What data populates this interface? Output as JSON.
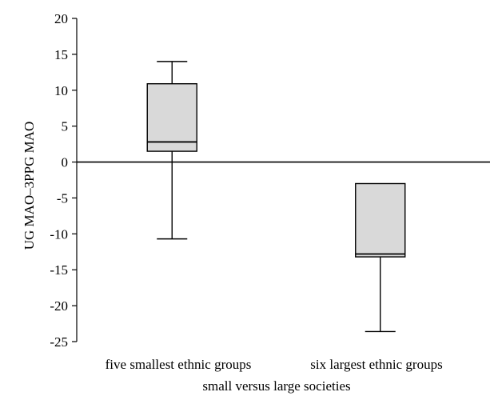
{
  "chart_data": {
    "type": "box",
    "title": "",
    "xlabel": "small versus large societies",
    "ylabel": "UG MAO–3PPG MAO",
    "ylim": [
      -25,
      20
    ],
    "yticks": [
      20,
      15,
      10,
      5,
      0,
      -5,
      -10,
      -15,
      -20,
      -25
    ],
    "ytick_labels": [
      "20",
      "15",
      "10",
      "5",
      "0",
      "-5",
      "-10",
      "-15",
      "-20",
      "-25"
    ],
    "reference_line": 0,
    "categories": [
      "five smallest ethnic groups",
      "six largest ethnic groups"
    ],
    "boxes": [
      {
        "category": "five smallest ethnic groups",
        "whisker_low": -10.7,
        "q1": 1.5,
        "median": 2.8,
        "q3": 10.9,
        "whisker_high": 14
      },
      {
        "category": "six largest ethnic groups",
        "whisker_low": -23.6,
        "q1": -13.2,
        "median": -12.8,
        "q3": -3.0,
        "whisker_high": -3.0
      }
    ],
    "colors": {
      "box_fill": "#d9d9d9",
      "stroke": "#000000"
    },
    "grid": false,
    "legend": "none"
  }
}
